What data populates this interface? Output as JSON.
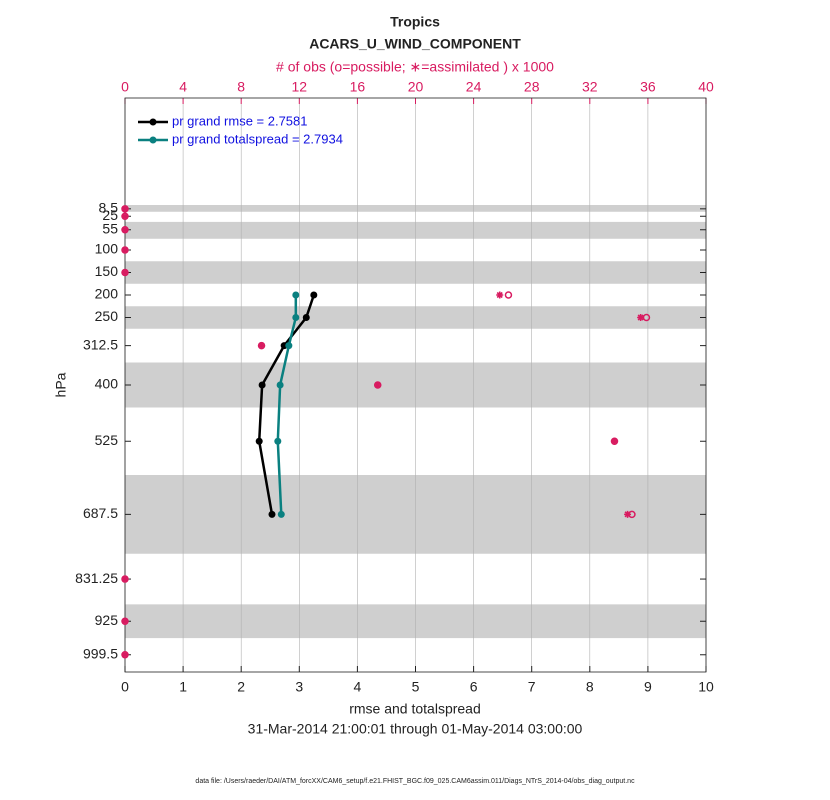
{
  "chart_data": {
    "type": "profile",
    "title": "Tropics",
    "subtitle": "ACARS_U_WIND_COMPONENT",
    "x2_label": "# of obs (o=possible; ∗=assimilated ) x 1000",
    "x_label": "rmse and totalspread",
    "y_label": "hPa",
    "date_range": "31-Mar-2014 21:00:01 through 01-May-2014 03:00:00",
    "footer": "data file: /Users/raeder/DAI/ATM_forcXX/CAM6_setup/f.e21.FHIST_BGC.f09_025.CAM6assim.011/Diags_NTrS_2014-04/obs_diag_output.nc",
    "y": [
      8.5,
      25,
      55,
      100,
      150,
      200,
      250,
      312.5,
      400,
      525,
      687.5,
      831.25,
      925,
      999.5
    ],
    "ylim": [
      -237.8,
      1037.8
    ],
    "y_reversed": true,
    "yticks": [
      8.5,
      25,
      55,
      100,
      150,
      200,
      250,
      312.5,
      400,
      525,
      687.5,
      831.25,
      925,
      999.5
    ],
    "xlim": [
      0,
      10
    ],
    "xticks": [
      0,
      1,
      2,
      3,
      4,
      5,
      6,
      7,
      8,
      9,
      10
    ],
    "x2lim": [
      0,
      40
    ],
    "x2ticks": [
      0,
      4,
      8,
      12,
      16,
      20,
      24,
      28,
      32,
      36,
      40
    ],
    "grid": true,
    "legend": "top-left",
    "layer_bands": [
      [
        0,
        15
      ],
      [
        37.5,
        75
      ],
      [
        125,
        175
      ],
      [
        225,
        275
      ],
      [
        350,
        450
      ],
      [
        600,
        775
      ],
      [
        887.5,
        962.5
      ]
    ],
    "band_color": "#cfcfcf",
    "x2_color": "#d81b60",
    "series": [
      {
        "name": "pr grand rmse = 2.7581",
        "color": "#000000",
        "values": [
          null,
          null,
          null,
          null,
          null,
          3.25,
          3.12,
          2.74,
          2.36,
          2.31,
          2.53,
          null,
          null,
          null
        ]
      },
      {
        "name": "pr grand totalspread = 2.7934",
        "color": "#0a8080",
        "values": [
          null,
          null,
          null,
          null,
          null,
          2.94,
          2.94,
          2.82,
          2.67,
          2.63,
          2.69,
          null,
          null,
          null
        ]
      },
      {
        "axis": "x2",
        "marker": "o",
        "color": "#d81b60",
        "values": [
          0,
          0,
          0,
          0,
          0,
          26.4,
          35.9,
          9.4,
          17.4,
          33.7,
          34.9,
          0,
          0,
          0
        ]
      },
      {
        "axis": "x2",
        "marker": "*",
        "color": "#d81b60",
        "values": [
          0,
          0,
          0,
          0,
          0,
          25.8,
          35.5,
          9.4,
          17.4,
          33.7,
          34.6,
          0,
          0,
          0
        ]
      }
    ]
  }
}
